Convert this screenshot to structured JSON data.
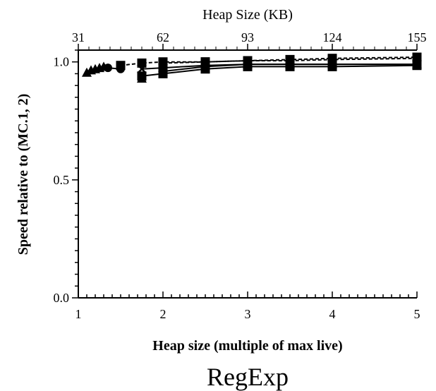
{
  "chart_data": {
    "type": "line",
    "title": "",
    "caption": "RegExp",
    "xlabel": "Heap size (multiple of max live)",
    "ylabel": "Speed relative to (MC.1, 2)",
    "x2label": "Heap Size (KB)",
    "xlim": [
      1,
      5
    ],
    "ylim": [
      0,
      1.05
    ],
    "xticks": [
      1,
      2,
      3,
      4,
      5
    ],
    "x_tick_labels": [
      "1",
      "2",
      "3",
      "4",
      "5"
    ],
    "yticks": [
      0,
      0.5,
      1
    ],
    "y_tick_labels": [
      "0.0",
      "0.5",
      "1.0"
    ],
    "x2_tick_labels": [
      "31",
      "62",
      "93",
      "124",
      "155"
    ],
    "grid": false,
    "series": [
      {
        "marker": "square",
        "dash": "solid",
        "x": [
          1.75,
          2,
          2.5,
          3,
          3.5,
          4,
          5
        ],
        "y": [
          0.94,
          0.95,
          0.97,
          0.98,
          0.98,
          0.98,
          0.985
        ]
      },
      {
        "marker": "square",
        "dash": "solid",
        "x": [
          2,
          2.5,
          3,
          3.5,
          4,
          5
        ],
        "y": [
          0.96,
          0.98,
          0.99,
          0.99,
          0.99,
          0.99
        ]
      },
      {
        "marker": "x",
        "dash": "solid",
        "x": [
          1.75,
          2,
          2.5,
          3,
          3.5,
          4,
          5
        ],
        "y": [
          0.97,
          0.975,
          0.985,
          0.99,
          0.99,
          0.99,
          0.99
        ]
      },
      {
        "marker": "square",
        "dash": "dashed",
        "x": [
          1.5,
          1.75,
          2,
          2.5,
          3,
          3.5,
          4,
          5
        ],
        "y": [
          0.985,
          0.995,
          1.0,
          1.0,
          1.005,
          1.005,
          1.01,
          1.015
        ]
      },
      {
        "marker": "square",
        "dash": "dashed",
        "x": [
          2,
          2.5,
          3,
          3.5,
          4,
          5
        ],
        "y": [
          0.995,
          1.0,
          1.005,
          1.01,
          1.015,
          1.02
        ]
      },
      {
        "marker": "triangle",
        "dash": "solid",
        "x": [
          1.1,
          1.15,
          1.2,
          1.25,
          1.3
        ],
        "y": [
          0.955,
          0.965,
          0.97,
          0.975,
          0.98
        ]
      },
      {
        "marker": "circle",
        "dash": "solid",
        "x": [
          1.35,
          1.5
        ],
        "y": [
          0.975,
          0.97
        ]
      },
      {
        "marker": "triangle",
        "dash": "solid",
        "x": [
          1.75
        ],
        "y": [
          0.93
        ]
      }
    ]
  }
}
